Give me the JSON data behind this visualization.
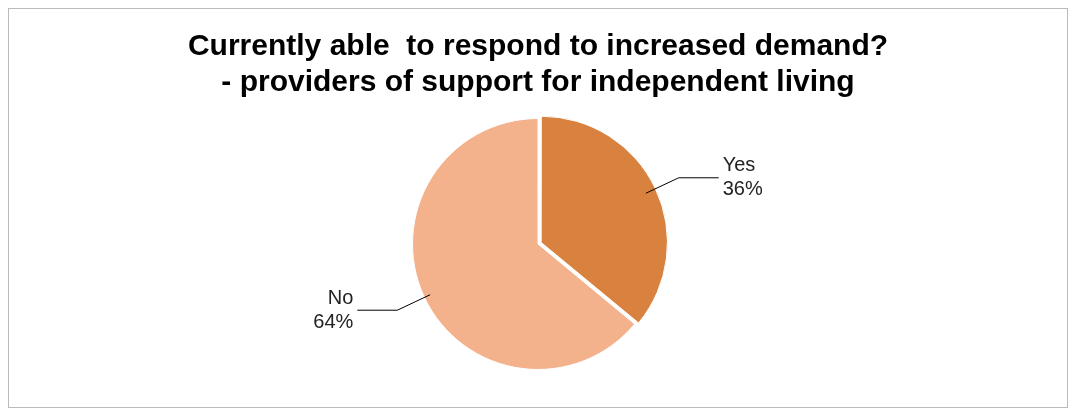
{
  "chart_data": {
    "type": "pie",
    "title": "Currently able  to respond to increased demand?\n- providers of support for independent living",
    "categories": [
      "Yes",
      "No"
    ],
    "values": [
      36,
      64
    ],
    "colors": [
      "#d9823f",
      "#f4b28c"
    ],
    "value_labels": [
      "36%",
      "64%"
    ],
    "legend": false
  }
}
